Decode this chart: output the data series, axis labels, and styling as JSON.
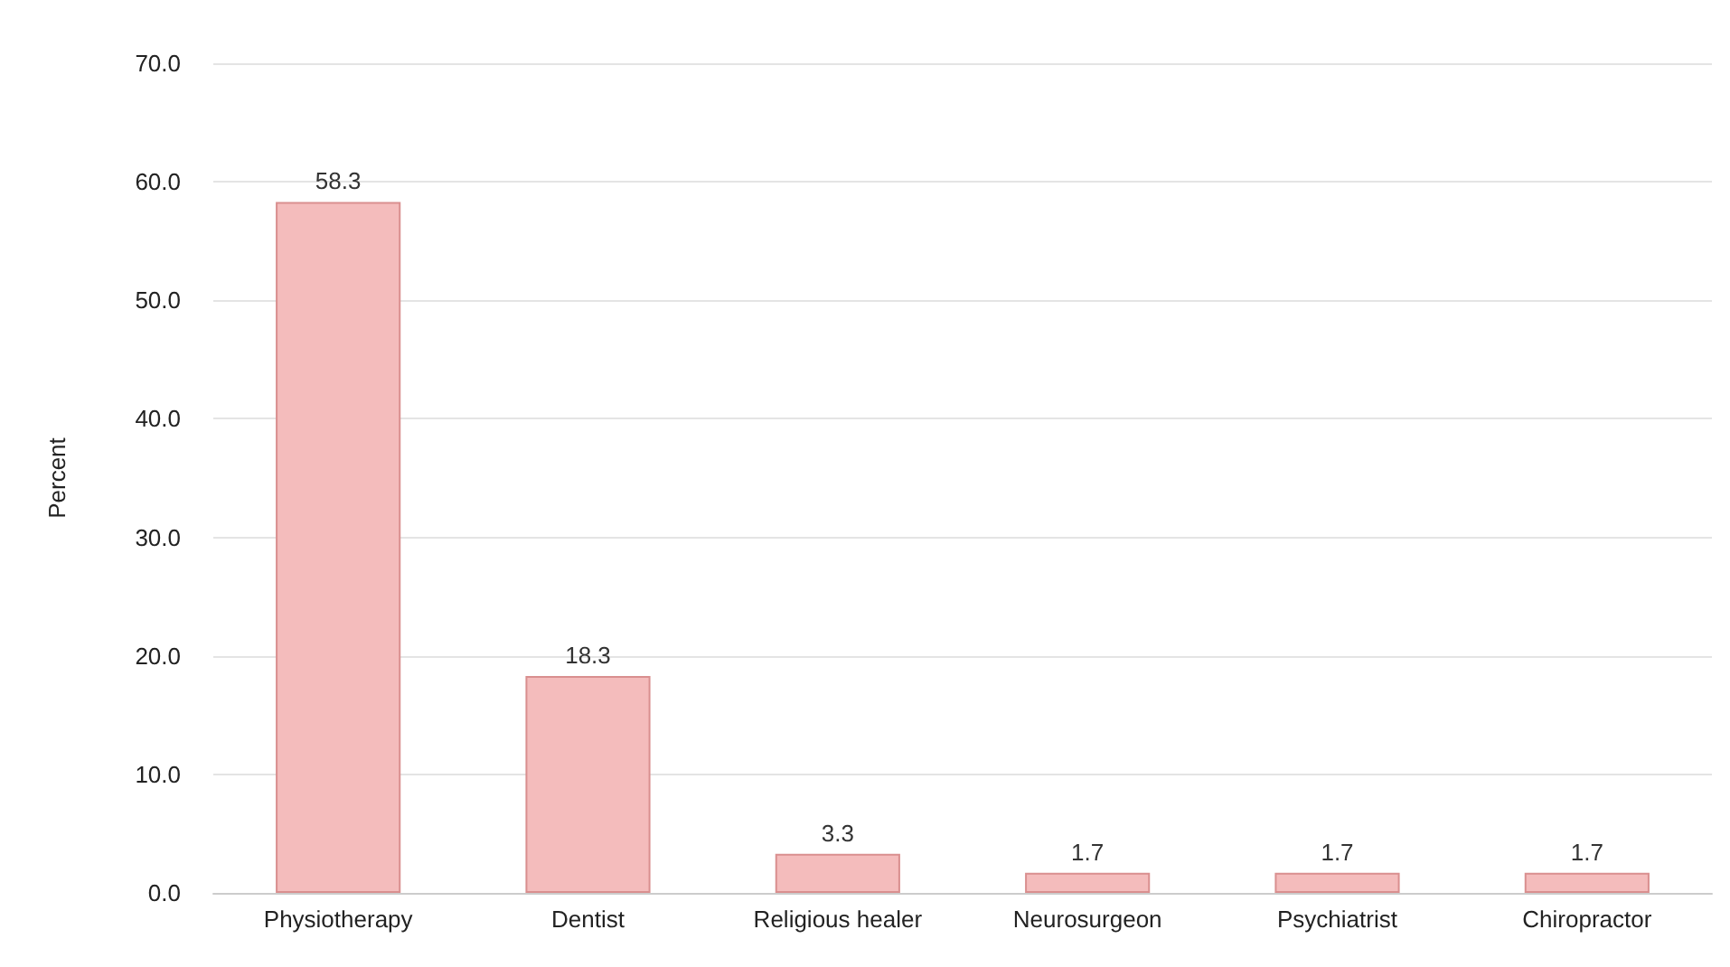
{
  "chart_data": {
    "type": "bar",
    "ylabel": "Percent",
    "categories": [
      "Physiotherapy",
      "Dentist",
      "Religious healer",
      "Neurosurgeon",
      "Psychiatrist",
      "Chiropractor"
    ],
    "values": [
      58.3,
      18.3,
      3.3,
      1.7,
      1.7,
      1.7
    ],
    "color": "#f4bcbc",
    "ylim": [
      0,
      70
    ],
    "yticks": [
      {
        "value": 0,
        "label": "0.0"
      },
      {
        "value": 10,
        "label": "10.0"
      },
      {
        "value": 20,
        "label": "20.0"
      },
      {
        "value": 30,
        "label": "30.0"
      },
      {
        "value": 40,
        "label": "40.0"
      },
      {
        "value": 50,
        "label": "50.0"
      },
      {
        "value": 60,
        "label": "60.0"
      },
      {
        "value": 70,
        "label": "70.0"
      }
    ],
    "grid": "y",
    "data_labels": true
  }
}
